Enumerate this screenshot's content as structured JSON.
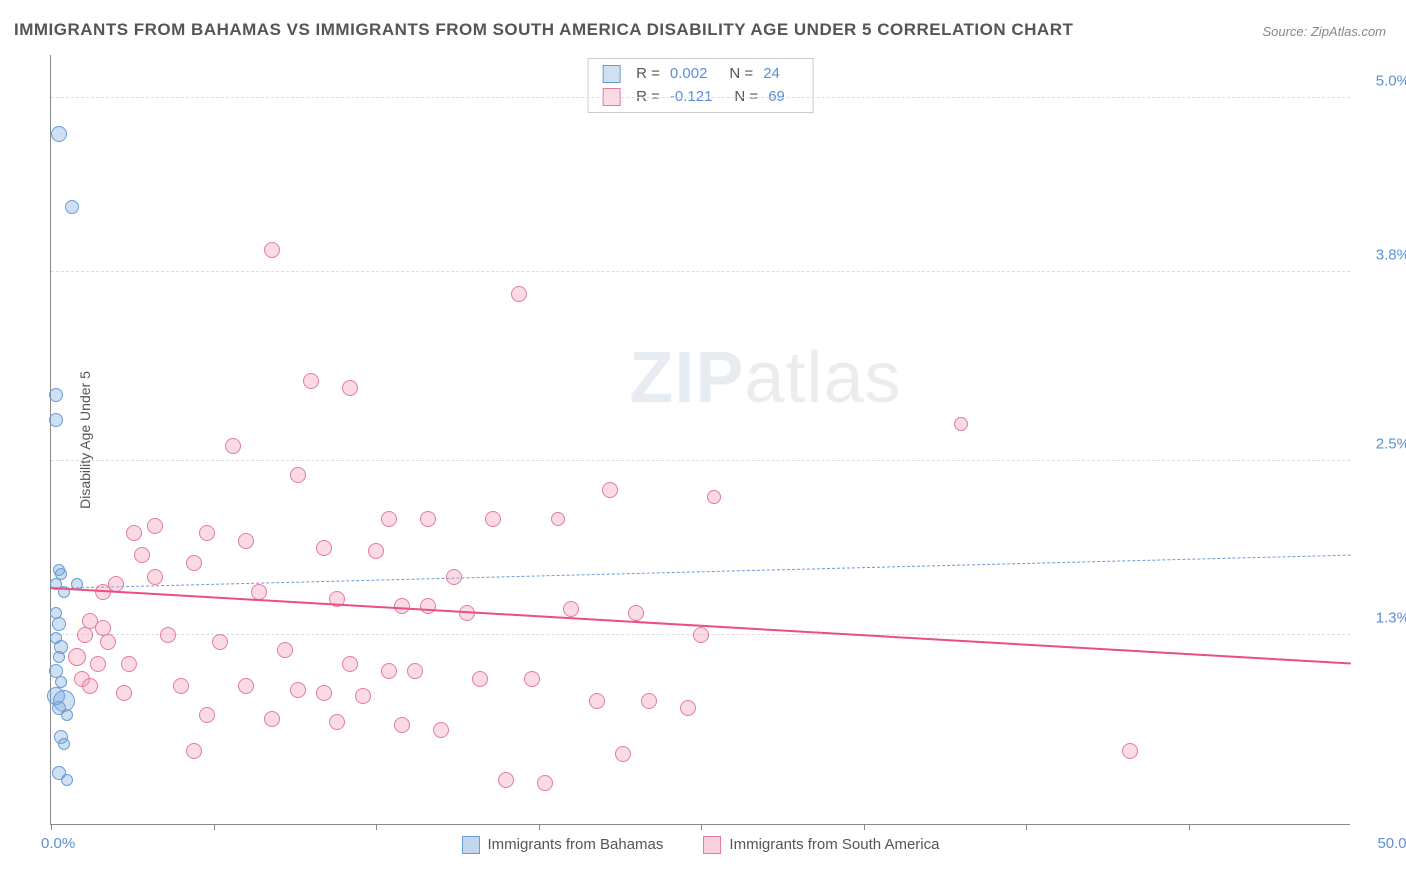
{
  "title": "IMMIGRANTS FROM BAHAMAS VS IMMIGRANTS FROM SOUTH AMERICA DISABILITY AGE UNDER 5 CORRELATION CHART",
  "source": "Source: ZipAtlas.com",
  "y_axis_title": "Disability Age Under 5",
  "watermark_bold": "ZIP",
  "watermark_light": "atlas",
  "chart": {
    "type": "scatter",
    "xlim": [
      0,
      50
    ],
    "ylim": [
      0,
      5.3
    ],
    "x_origin_label": "0.0%",
    "x_max_label": "50.0%",
    "x_ticks": [
      0,
      6.25,
      12.5,
      18.75,
      25,
      31.25,
      37.5,
      43.75
    ],
    "y_gridlines": [
      {
        "value": 1.3,
        "label": "1.3%"
      },
      {
        "value": 2.5,
        "label": "2.5%"
      },
      {
        "value": 3.8,
        "label": "3.8%"
      },
      {
        "value": 5.0,
        "label": "5.0%"
      }
    ],
    "background_color": "#ffffff",
    "grid_color": "#dddddd",
    "axis_color": "#888888",
    "tick_label_color": "#5b8fd6",
    "series": [
      {
        "name": "Immigrants from Bahamas",
        "color_fill": "rgba(120,165,220,0.35)",
        "color_stroke": "#6a9bd8",
        "trend": {
          "y_start": 1.62,
          "y_end": 1.85,
          "dashed": true,
          "color": "#6a9bd8",
          "width": 1.5
        },
        "stats": {
          "R": "0.002",
          "N": "24"
        },
        "points": [
          {
            "x": 0.3,
            "y": 4.75,
            "r": 8
          },
          {
            "x": 0.8,
            "y": 4.25,
            "r": 7
          },
          {
            "x": 0.2,
            "y": 2.95,
            "r": 7
          },
          {
            "x": 0.2,
            "y": 2.78,
            "r": 7
          },
          {
            "x": 0.3,
            "y": 1.75,
            "r": 6
          },
          {
            "x": 0.4,
            "y": 1.72,
            "r": 6
          },
          {
            "x": 0.2,
            "y": 1.65,
            "r": 6
          },
          {
            "x": 0.5,
            "y": 1.6,
            "r": 6
          },
          {
            "x": 0.2,
            "y": 1.45,
            "r": 6
          },
          {
            "x": 0.3,
            "y": 1.38,
            "r": 7
          },
          {
            "x": 0.2,
            "y": 1.28,
            "r": 6
          },
          {
            "x": 0.4,
            "y": 1.22,
            "r": 7
          },
          {
            "x": 0.3,
            "y": 1.15,
            "r": 6
          },
          {
            "x": 0.2,
            "y": 1.05,
            "r": 7
          },
          {
            "x": 0.4,
            "y": 0.98,
            "r": 6
          },
          {
            "x": 0.2,
            "y": 0.88,
            "r": 9
          },
          {
            "x": 0.5,
            "y": 0.85,
            "r": 11
          },
          {
            "x": 0.3,
            "y": 0.8,
            "r": 7
          },
          {
            "x": 0.6,
            "y": 0.75,
            "r": 6
          },
          {
            "x": 0.4,
            "y": 0.6,
            "r": 7
          },
          {
            "x": 0.5,
            "y": 0.55,
            "r": 6
          },
          {
            "x": 0.3,
            "y": 0.35,
            "r": 7
          },
          {
            "x": 0.6,
            "y": 0.3,
            "r": 6
          },
          {
            "x": 1.0,
            "y": 1.65,
            "r": 6
          }
        ]
      },
      {
        "name": "Immigrants from South America",
        "color_fill": "rgba(240,150,175,0.35)",
        "color_stroke": "#e57ba0",
        "trend": {
          "y_start": 1.62,
          "y_end": 1.1,
          "dashed": false,
          "color": "#e94f82",
          "width": 2.5
        },
        "stats": {
          "R": "-0.121",
          "N": "69"
        },
        "points": [
          {
            "x": 8.5,
            "y": 3.95,
            "r": 8
          },
          {
            "x": 18.0,
            "y": 3.65,
            "r": 8
          },
          {
            "x": 10.0,
            "y": 3.05,
            "r": 8
          },
          {
            "x": 11.5,
            "y": 3.0,
            "r": 8
          },
          {
            "x": 35.0,
            "y": 2.75,
            "r": 7
          },
          {
            "x": 7.0,
            "y": 2.6,
            "r": 8
          },
          {
            "x": 9.5,
            "y": 2.4,
            "r": 8
          },
          {
            "x": 21.5,
            "y": 2.3,
            "r": 8
          },
          {
            "x": 25.5,
            "y": 2.25,
            "r": 7
          },
          {
            "x": 13.0,
            "y": 2.1,
            "r": 8
          },
          {
            "x": 14.5,
            "y": 2.1,
            "r": 8
          },
          {
            "x": 17.0,
            "y": 2.1,
            "r": 8
          },
          {
            "x": 19.5,
            "y": 2.1,
            "r": 7
          },
          {
            "x": 4.0,
            "y": 2.05,
            "r": 8
          },
          {
            "x": 6.0,
            "y": 2.0,
            "r": 8
          },
          {
            "x": 7.5,
            "y": 1.95,
            "r": 8
          },
          {
            "x": 10.5,
            "y": 1.9,
            "r": 8
          },
          {
            "x": 12.5,
            "y": 1.88,
            "r": 8
          },
          {
            "x": 3.5,
            "y": 1.85,
            "r": 8
          },
          {
            "x": 5.5,
            "y": 1.8,
            "r": 8
          },
          {
            "x": 15.5,
            "y": 1.7,
            "r": 8
          },
          {
            "x": 2.5,
            "y": 1.65,
            "r": 8
          },
          {
            "x": 8.0,
            "y": 1.6,
            "r": 8
          },
          {
            "x": 11.0,
            "y": 1.55,
            "r": 8
          },
          {
            "x": 13.5,
            "y": 1.5,
            "r": 8
          },
          {
            "x": 14.5,
            "y": 1.5,
            "r": 8
          },
          {
            "x": 16.0,
            "y": 1.45,
            "r": 8
          },
          {
            "x": 20.0,
            "y": 1.48,
            "r": 8
          },
          {
            "x": 22.5,
            "y": 1.45,
            "r": 8
          },
          {
            "x": 1.5,
            "y": 1.4,
            "r": 8
          },
          {
            "x": 2.0,
            "y": 1.35,
            "r": 8
          },
          {
            "x": 4.5,
            "y": 1.3,
            "r": 8
          },
          {
            "x": 25.0,
            "y": 1.3,
            "r": 8
          },
          {
            "x": 6.5,
            "y": 1.25,
            "r": 8
          },
          {
            "x": 9.0,
            "y": 1.2,
            "r": 8
          },
          {
            "x": 1.0,
            "y": 1.15,
            "r": 9
          },
          {
            "x": 1.8,
            "y": 1.1,
            "r": 8
          },
          {
            "x": 3.0,
            "y": 1.1,
            "r": 8
          },
          {
            "x": 11.5,
            "y": 1.1,
            "r": 8
          },
          {
            "x": 13.0,
            "y": 1.05,
            "r": 8
          },
          {
            "x": 14.0,
            "y": 1.05,
            "r": 8
          },
          {
            "x": 16.5,
            "y": 1.0,
            "r": 8
          },
          {
            "x": 18.5,
            "y": 1.0,
            "r": 8
          },
          {
            "x": 5.0,
            "y": 0.95,
            "r": 8
          },
          {
            "x": 7.5,
            "y": 0.95,
            "r": 8
          },
          {
            "x": 9.5,
            "y": 0.92,
            "r": 8
          },
          {
            "x": 10.5,
            "y": 0.9,
            "r": 8
          },
          {
            "x": 12.0,
            "y": 0.88,
            "r": 8
          },
          {
            "x": 21.0,
            "y": 0.85,
            "r": 8
          },
          {
            "x": 23.0,
            "y": 0.85,
            "r": 8
          },
          {
            "x": 24.5,
            "y": 0.8,
            "r": 8
          },
          {
            "x": 6.0,
            "y": 0.75,
            "r": 8
          },
          {
            "x": 8.5,
            "y": 0.72,
            "r": 8
          },
          {
            "x": 11.0,
            "y": 0.7,
            "r": 8
          },
          {
            "x": 13.5,
            "y": 0.68,
            "r": 8
          },
          {
            "x": 15.0,
            "y": 0.65,
            "r": 8
          },
          {
            "x": 1.2,
            "y": 1.0,
            "r": 8
          },
          {
            "x": 1.5,
            "y": 0.95,
            "r": 8
          },
          {
            "x": 2.2,
            "y": 1.25,
            "r": 8
          },
          {
            "x": 2.8,
            "y": 0.9,
            "r": 8
          },
          {
            "x": 5.5,
            "y": 0.5,
            "r": 8
          },
          {
            "x": 22.0,
            "y": 0.48,
            "r": 8
          },
          {
            "x": 41.5,
            "y": 0.5,
            "r": 8
          },
          {
            "x": 17.5,
            "y": 0.3,
            "r": 8
          },
          {
            "x": 19.0,
            "y": 0.28,
            "r": 8
          },
          {
            "x": 4.0,
            "y": 1.7,
            "r": 8
          },
          {
            "x": 3.2,
            "y": 2.0,
            "r": 8
          },
          {
            "x": 2.0,
            "y": 1.6,
            "r": 8
          },
          {
            "x": 1.3,
            "y": 1.3,
            "r": 8
          }
        ]
      }
    ]
  },
  "legend_bottom": [
    {
      "label": "Immigrants from Bahamas",
      "fill": "rgba(120,165,220,0.45)",
      "stroke": "#6a9bd8"
    },
    {
      "label": "Immigrants from South America",
      "fill": "rgba(240,150,175,0.45)",
      "stroke": "#e57ba0"
    }
  ]
}
